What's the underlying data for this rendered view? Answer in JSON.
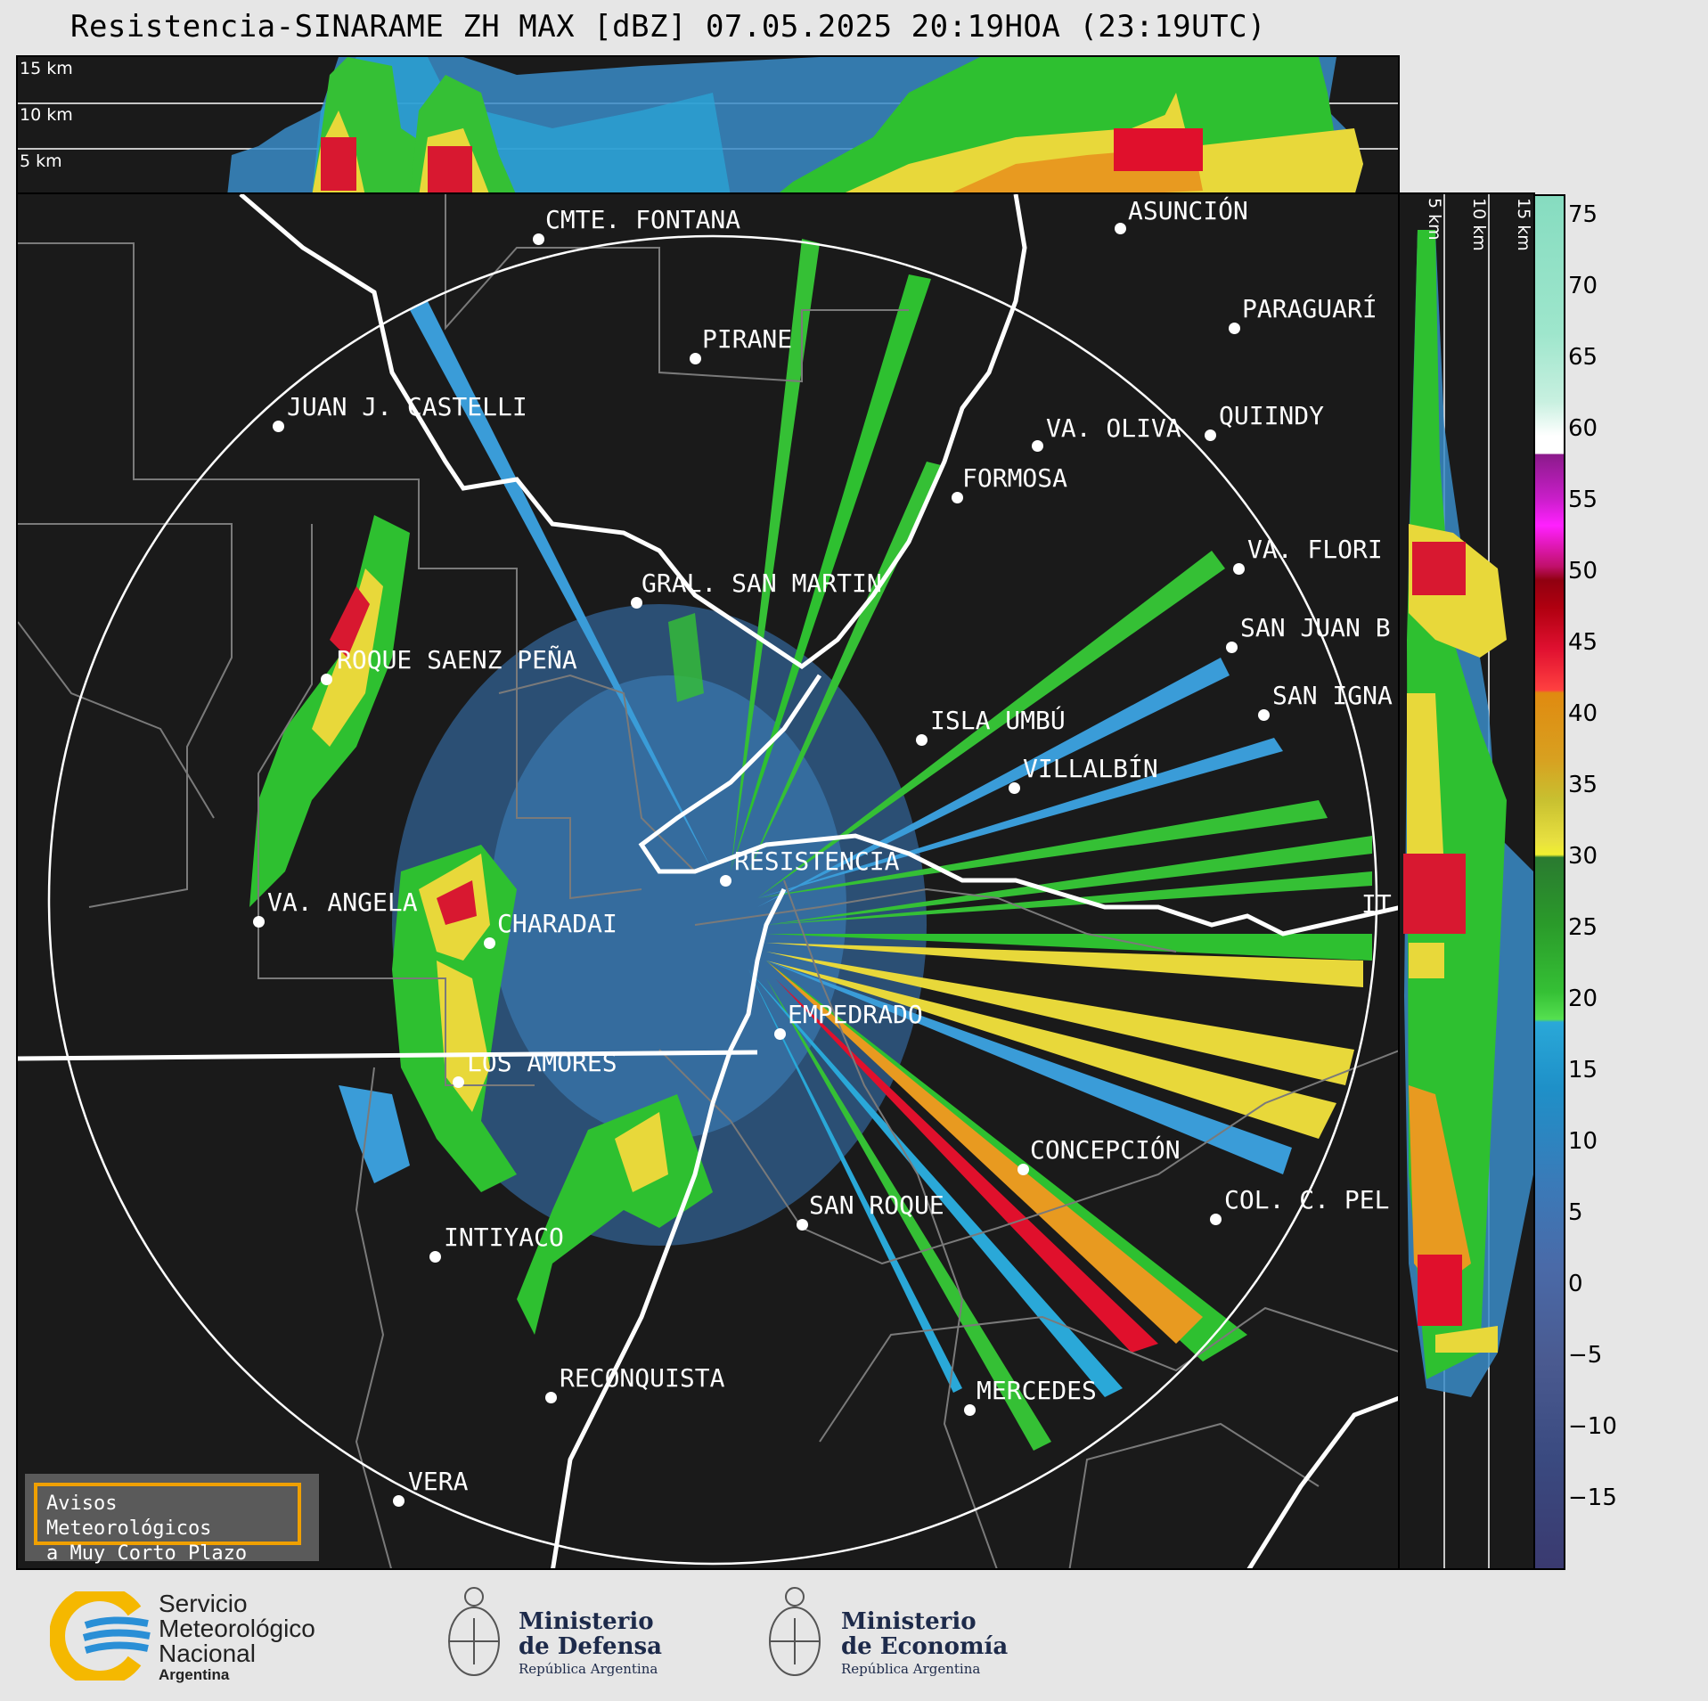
{
  "title": "Resistencia-SINARAME ZH MAX [dBZ] 07.05.2025 20:19HOA (23:19UTC)",
  "top_panel": {
    "height_labels": [
      "15 km",
      "10 km",
      "5 km"
    ]
  },
  "side_panel": {
    "height_labels": [
      "5 km",
      "10 km",
      "15 km"
    ]
  },
  "colorbar": {
    "unit": "dBZ",
    "ticks": [
      "75",
      "70",
      "65",
      "60",
      "55",
      "50",
      "45",
      "40",
      "35",
      "30",
      "25",
      "20",
      "15",
      "10",
      "5",
      "0",
      "−5",
      "−10",
      "−15"
    ]
  },
  "cities": [
    {
      "name": "CMTE. FONTANA"
    },
    {
      "name": "ASUNCIÓN"
    },
    {
      "name": "PIRANE"
    },
    {
      "name": "PARAGUARÍ"
    },
    {
      "name": "JUAN J. CASTELLI"
    },
    {
      "name": "VA. OLIVA"
    },
    {
      "name": "QUIINDY"
    },
    {
      "name": "FORMOSA"
    },
    {
      "name": "VA. FLORI"
    },
    {
      "name": "GRAL. SAN MARTIN"
    },
    {
      "name": "SAN JUAN B"
    },
    {
      "name": "ROQUE SAENZ PEÑA"
    },
    {
      "name": "SAN IGNA"
    },
    {
      "name": "ISLA UMBÚ"
    },
    {
      "name": "VILLALBÍN"
    },
    {
      "name": "RESISTENCIA"
    },
    {
      "name": "VA. ANGELA"
    },
    {
      "name": "CHARADAI"
    },
    {
      "name": "IT"
    },
    {
      "name": "EMPEDRADO"
    },
    {
      "name": "LOS AMORES"
    },
    {
      "name": "CONCEPCIÓN"
    },
    {
      "name": "SAN ROQUE"
    },
    {
      "name": "COL. C. PEL"
    },
    {
      "name": "INTIYACO"
    },
    {
      "name": "RECONQUISTA"
    },
    {
      "name": "MERCEDES"
    },
    {
      "name": "VERA"
    }
  ],
  "notice": {
    "line1": "Avisos Meteorológicos",
    "line2": "a Muy Corto Plazo"
  },
  "logos": {
    "smn": {
      "line1": "Servicio",
      "line2": "Meteorológico",
      "line3": "Nacional",
      "line4": "Argentina"
    },
    "defensa": {
      "line1": "Ministerio",
      "line2": "de Defensa",
      "sub": "República Argentina"
    },
    "economia": {
      "line1": "Ministerio",
      "line2": "de Economía",
      "sub": "República Argentina"
    }
  },
  "colors": {
    "background": "#1a1a1a",
    "accent_orange": "#f0a000",
    "smn_yellow": "#f5b800",
    "smn_blue": "#2a8fd6"
  }
}
